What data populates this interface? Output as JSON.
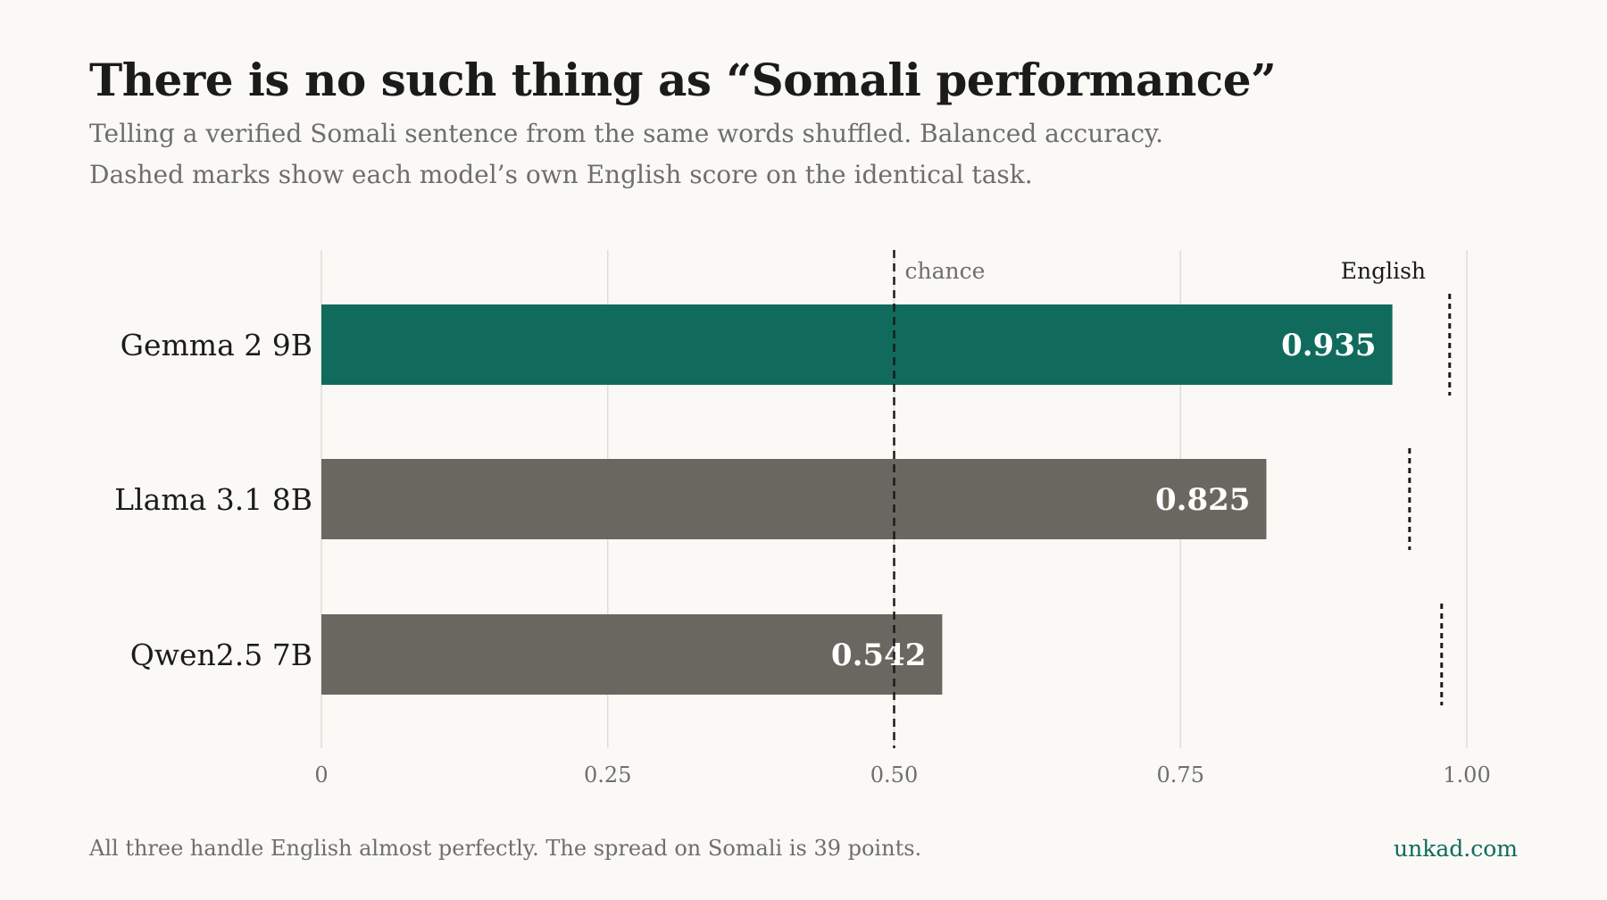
{
  "header": {
    "title": "There is no such thing as “Somali performance”",
    "subtitle_lines": [
      "Telling a verified Somali sentence from the same words shuffled. Balanced accuracy.",
      "Dashed marks show each model’s own English score on the identical task."
    ]
  },
  "chart_data": {
    "type": "bar",
    "orientation": "horizontal",
    "categories": [
      "Gemma 2 9B",
      "Llama 3.1 8B",
      "Qwen2.5 7B"
    ],
    "values": [
      0.935,
      0.825,
      0.542
    ],
    "value_labels": [
      "0.935",
      "0.825",
      "0.542"
    ],
    "english_scores": [
      0.985,
      0.95,
      0.978
    ],
    "xlim": [
      0,
      1.0
    ],
    "xticks": [
      0,
      0.25,
      0.5,
      0.75,
      1.0
    ],
    "xtick_labels": [
      "0",
      "0.25",
      "0.50",
      "0.75",
      "1.00"
    ],
    "reference_line": {
      "value": 0.5,
      "label": "chance"
    },
    "english_label": "English",
    "grid": true,
    "colors": {
      "highlight": "#106b5c",
      "default": "#6a6760",
      "grid": "#e0ddd6",
      "reference": "#1b1b1b"
    }
  },
  "footer": {
    "note": "All three handle English almost perfectly. The spread on Somali is 39 points.",
    "brand": "unkad.com"
  }
}
